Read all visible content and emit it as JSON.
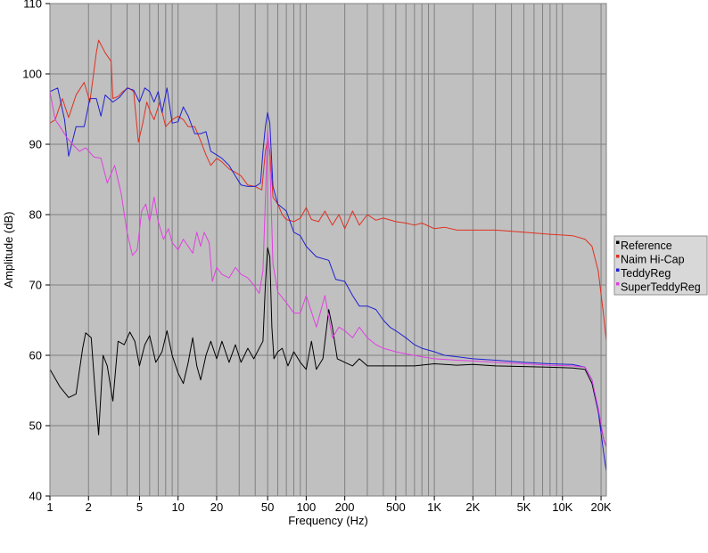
{
  "chart_data": {
    "type": "line",
    "title": "",
    "xlabel": "Frequency (Hz)",
    "ylabel": "Amplitude (dB)",
    "x_scale": "log",
    "xlim": [
      1,
      22000
    ],
    "ylim": [
      40,
      110
    ],
    "grid": true,
    "background_color": "#c0c0c0",
    "grid_color": "#808080",
    "x_ticks": [
      {
        "value": 1,
        "label": "1"
      },
      {
        "value": 2,
        "label": "2"
      },
      {
        "value": 5,
        "label": "5"
      },
      {
        "value": 10,
        "label": "10"
      },
      {
        "value": 20,
        "label": "20"
      },
      {
        "value": 50,
        "label": "50"
      },
      {
        "value": 100,
        "label": "100"
      },
      {
        "value": 200,
        "label": "200"
      },
      {
        "value": 500,
        "label": "500"
      },
      {
        "value": 1000,
        "label": "1K"
      },
      {
        "value": 2000,
        "label": "2K"
      },
      {
        "value": 5000,
        "label": "5K"
      },
      {
        "value": 10000,
        "label": "10K"
      },
      {
        "value": 20000,
        "label": "20K"
      }
    ],
    "y_ticks": [
      {
        "value": 40,
        "label": "40"
      },
      {
        "value": 50,
        "label": "50"
      },
      {
        "value": 60,
        "label": "60"
      },
      {
        "value": 70,
        "label": "70"
      },
      {
        "value": 80,
        "label": "80"
      },
      {
        "value": 90,
        "label": "90"
      },
      {
        "value": 100,
        "label": "100"
      },
      {
        "value": 110,
        "label": "110"
      }
    ],
    "legend_position": "right",
    "series": [
      {
        "name": "Reference",
        "color": "#000000",
        "points": [
          [
            1,
            58
          ],
          [
            1.2,
            55.5
          ],
          [
            1.4,
            54
          ],
          [
            1.6,
            54.5
          ],
          [
            1.8,
            61
          ],
          [
            1.9,
            63.2
          ],
          [
            2.1,
            62.5
          ],
          [
            2.25,
            55
          ],
          [
            2.4,
            48.7
          ],
          [
            2.6,
            60
          ],
          [
            2.8,
            58.5
          ],
          [
            3.1,
            53.5
          ],
          [
            3.4,
            62
          ],
          [
            3.8,
            61.5
          ],
          [
            4.2,
            63.3
          ],
          [
            4.6,
            62
          ],
          [
            5,
            58.5
          ],
          [
            5.5,
            61.5
          ],
          [
            6,
            62.8
          ],
          [
            6.7,
            59
          ],
          [
            7.5,
            60.5
          ],
          [
            8.2,
            63.5
          ],
          [
            9,
            60
          ],
          [
            10,
            57.5
          ],
          [
            11,
            56
          ],
          [
            12,
            59
          ],
          [
            13,
            62.5
          ],
          [
            14,
            58.5
          ],
          [
            15,
            56.5
          ],
          [
            16.5,
            60
          ],
          [
            18,
            62
          ],
          [
            20,
            59.5
          ],
          [
            22,
            62
          ],
          [
            25,
            59
          ],
          [
            28,
            61.5
          ],
          [
            31,
            59
          ],
          [
            35,
            61
          ],
          [
            39,
            59.5
          ],
          [
            43,
            61
          ],
          [
            46,
            62
          ],
          [
            48,
            70
          ],
          [
            50,
            75.3
          ],
          [
            52,
            74
          ],
          [
            54,
            64
          ],
          [
            56,
            59.5
          ],
          [
            60,
            60.5
          ],
          [
            65,
            61
          ],
          [
            72,
            58.5
          ],
          [
            80,
            60.5
          ],
          [
            90,
            59
          ],
          [
            100,
            58
          ],
          [
            110,
            62
          ],
          [
            120,
            58
          ],
          [
            135,
            59.5
          ],
          [
            150,
            66.5
          ],
          [
            160,
            64
          ],
          [
            175,
            59.5
          ],
          [
            200,
            59
          ],
          [
            230,
            58.5
          ],
          [
            260,
            59.5
          ],
          [
            300,
            58.5
          ],
          [
            400,
            58.5
          ],
          [
            500,
            58.5
          ],
          [
            700,
            58.5
          ],
          [
            1000,
            58.8
          ],
          [
            1500,
            58.6
          ],
          [
            2000,
            58.7
          ],
          [
            3000,
            58.5
          ],
          [
            5000,
            58.4
          ],
          [
            8000,
            58.3
          ],
          [
            12000,
            58.2
          ],
          [
            15000,
            58
          ],
          [
            17000,
            56
          ],
          [
            19000,
            52
          ],
          [
            21000,
            48
          ],
          [
            22000,
            47
          ]
        ]
      },
      {
        "name": "Naim Hi-Cap",
        "color": "#e03020",
        "points": [
          [
            1,
            93
          ],
          [
            1.1,
            93.5
          ],
          [
            1.25,
            96.5
          ],
          [
            1.4,
            93.8
          ],
          [
            1.6,
            97
          ],
          [
            1.85,
            98.8
          ],
          [
            2.05,
            96
          ],
          [
            2.3,
            103
          ],
          [
            2.4,
            104.8
          ],
          [
            2.7,
            103
          ],
          [
            3,
            101.8
          ],
          [
            3.1,
            96.5
          ],
          [
            3.4,
            96.8
          ],
          [
            3.7,
            97.5
          ],
          [
            4.1,
            98
          ],
          [
            4.5,
            97.5
          ],
          [
            4.9,
            90.3
          ],
          [
            5.3,
            93
          ],
          [
            5.7,
            96
          ],
          [
            6.1,
            94.5
          ],
          [
            6.5,
            93.5
          ],
          [
            7.2,
            96
          ],
          [
            8,
            92.5
          ],
          [
            9,
            93.5
          ],
          [
            10,
            94
          ],
          [
            11,
            93.5
          ],
          [
            12,
            92.5
          ],
          [
            13.5,
            92.5
          ],
          [
            15,
            90.5
          ],
          [
            16.5,
            88.5
          ],
          [
            18,
            87
          ],
          [
            20,
            88
          ],
          [
            22,
            87.5
          ],
          [
            25,
            86.5
          ],
          [
            28,
            86
          ],
          [
            31,
            85.5
          ],
          [
            35,
            84.2
          ],
          [
            40,
            84
          ],
          [
            45,
            83.5
          ],
          [
            48,
            89
          ],
          [
            50,
            90.5
          ],
          [
            52,
            89
          ],
          [
            55,
            82.5
          ],
          [
            60,
            81.5
          ],
          [
            65,
            80
          ],
          [
            70,
            79.3
          ],
          [
            80,
            79
          ],
          [
            90,
            79.5
          ],
          [
            100,
            81
          ],
          [
            110,
            79.3
          ],
          [
            125,
            79
          ],
          [
            140,
            80.5
          ],
          [
            160,
            78.5
          ],
          [
            180,
            80
          ],
          [
            200,
            78
          ],
          [
            230,
            80.5
          ],
          [
            260,
            78.5
          ],
          [
            300,
            80
          ],
          [
            350,
            79.2
          ],
          [
            400,
            79.5
          ],
          [
            500,
            79
          ],
          [
            600,
            78.8
          ],
          [
            700,
            78.5
          ],
          [
            800,
            78.8
          ],
          [
            1000,
            78
          ],
          [
            1200,
            78.2
          ],
          [
            1500,
            77.8
          ],
          [
            2000,
            77.8
          ],
          [
            3000,
            77.8
          ],
          [
            5000,
            77.5
          ],
          [
            8000,
            77.2
          ],
          [
            12000,
            77
          ],
          [
            15000,
            76.5
          ],
          [
            17000,
            75.5
          ],
          [
            19000,
            72
          ],
          [
            21000,
            65.5
          ],
          [
            22000,
            62
          ]
        ]
      },
      {
        "name": "TeddyReg",
        "color": "#2020d0",
        "points": [
          [
            1,
            97.5
          ],
          [
            1.15,
            98
          ],
          [
            1.3,
            93.5
          ],
          [
            1.4,
            88.3
          ],
          [
            1.6,
            92.5
          ],
          [
            1.85,
            92.5
          ],
          [
            2.05,
            96.5
          ],
          [
            2.3,
            96.5
          ],
          [
            2.5,
            94
          ],
          [
            2.7,
            97
          ],
          [
            3.1,
            96
          ],
          [
            3.5,
            96.7
          ],
          [
            4,
            98
          ],
          [
            4.5,
            97.7
          ],
          [
            5,
            96
          ],
          [
            5.5,
            98
          ],
          [
            6,
            97.5
          ],
          [
            6.5,
            96
          ],
          [
            7,
            97.5
          ],
          [
            7.5,
            94.5
          ],
          [
            8.2,
            98
          ],
          [
            9,
            93
          ],
          [
            10,
            93.2
          ],
          [
            11,
            95.3
          ],
          [
            12,
            94
          ],
          [
            13.5,
            91.5
          ],
          [
            15,
            91.5
          ],
          [
            16.5,
            91.8
          ],
          [
            18,
            89
          ],
          [
            20,
            88.5
          ],
          [
            22,
            88
          ],
          [
            25,
            87
          ],
          [
            28,
            85.5
          ],
          [
            31,
            84.2
          ],
          [
            35,
            84
          ],
          [
            40,
            84
          ],
          [
            44,
            84.5
          ],
          [
            46,
            89
          ],
          [
            48,
            92.5
          ],
          [
            50,
            94.5
          ],
          [
            52,
            93
          ],
          [
            55,
            84
          ],
          [
            60,
            81.5
          ],
          [
            70,
            80.5
          ],
          [
            80,
            77.5
          ],
          [
            90,
            77
          ],
          [
            100,
            75.5
          ],
          [
            120,
            74
          ],
          [
            150,
            73.5
          ],
          [
            170,
            70.8
          ],
          [
            200,
            70.5
          ],
          [
            230,
            68.5
          ],
          [
            260,
            67
          ],
          [
            300,
            67
          ],
          [
            350,
            66.5
          ],
          [
            400,
            65
          ],
          [
            450,
            64
          ],
          [
            500,
            63.5
          ],
          [
            600,
            62.5
          ],
          [
            700,
            61.5
          ],
          [
            800,
            61
          ],
          [
            1000,
            60.5
          ],
          [
            1200,
            60
          ],
          [
            1500,
            59.8
          ],
          [
            2000,
            59.5
          ],
          [
            3000,
            59.3
          ],
          [
            5000,
            59
          ],
          [
            8000,
            58.8
          ],
          [
            12000,
            58.7
          ],
          [
            15000,
            58.3
          ],
          [
            17000,
            56.5
          ],
          [
            19000,
            52
          ],
          [
            21000,
            46
          ],
          [
            22000,
            43.5
          ]
        ]
      },
      {
        "name": "SuperTeddyReg",
        "color": "#e040e0",
        "points": [
          [
            1,
            97.5
          ],
          [
            1.1,
            93.5
          ],
          [
            1.2,
            92.5
          ],
          [
            1.35,
            91
          ],
          [
            1.5,
            90
          ],
          [
            1.7,
            89
          ],
          [
            1.9,
            89.5
          ],
          [
            2.2,
            88.2
          ],
          [
            2.5,
            88
          ],
          [
            2.8,
            84.5
          ],
          [
            3.2,
            87
          ],
          [
            3.6,
            83
          ],
          [
            4,
            77.5
          ],
          [
            4.4,
            74.2
          ],
          [
            4.8,
            75
          ],
          [
            5.2,
            80.5
          ],
          [
            5.6,
            81.5
          ],
          [
            6,
            79
          ],
          [
            6.5,
            82.5
          ],
          [
            7,
            79
          ],
          [
            7.7,
            76.5
          ],
          [
            8.4,
            78
          ],
          [
            9,
            76
          ],
          [
            10,
            75
          ],
          [
            11,
            76.5
          ],
          [
            12,
            75.5
          ],
          [
            13,
            74.5
          ],
          [
            14,
            77.5
          ],
          [
            15,
            75.5
          ],
          [
            16,
            77.5
          ],
          [
            17.5,
            76
          ],
          [
            18.5,
            70.5
          ],
          [
            20,
            72.5
          ],
          [
            22,
            71.5
          ],
          [
            25,
            71
          ],
          [
            28,
            72.5
          ],
          [
            31,
            71.5
          ],
          [
            35,
            71
          ],
          [
            39,
            70
          ],
          [
            43,
            68.8
          ],
          [
            46,
            72
          ],
          [
            48,
            82
          ],
          [
            50,
            92
          ],
          [
            52,
            88
          ],
          [
            55,
            73
          ],
          [
            60,
            69
          ],
          [
            70,
            67.5
          ],
          [
            80,
            66
          ],
          [
            90,
            66
          ],
          [
            100,
            68.5
          ],
          [
            120,
            64
          ],
          [
            140,
            68.5
          ],
          [
            160,
            62.5
          ],
          [
            180,
            64
          ],
          [
            200,
            63.5
          ],
          [
            230,
            62.5
          ],
          [
            260,
            64
          ],
          [
            300,
            62.5
          ],
          [
            350,
            61.5
          ],
          [
            400,
            61
          ],
          [
            500,
            60.5
          ],
          [
            600,
            60.2
          ],
          [
            800,
            59.8
          ],
          [
            1000,
            59.5
          ],
          [
            1500,
            59.3
          ],
          [
            2000,
            59.2
          ],
          [
            3000,
            59
          ],
          [
            5000,
            58.8
          ],
          [
            8000,
            58.6
          ],
          [
            12000,
            58.5
          ],
          [
            15000,
            58.3
          ],
          [
            17000,
            56.5
          ],
          [
            19000,
            52.5
          ],
          [
            21000,
            48
          ],
          [
            22000,
            47
          ]
        ]
      }
    ]
  }
}
